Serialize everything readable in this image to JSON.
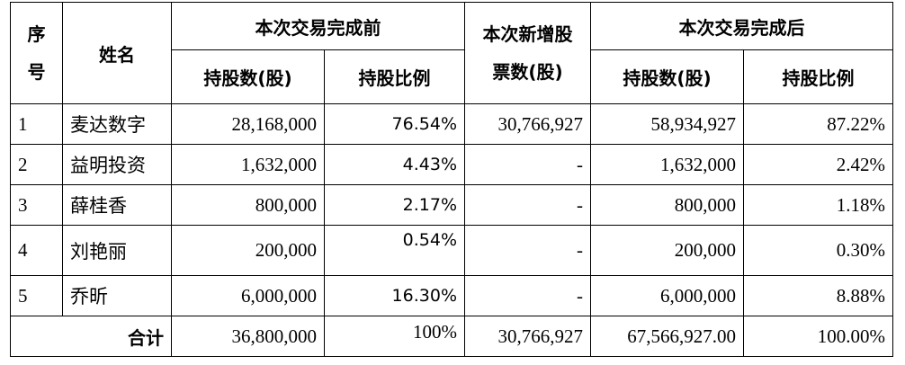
{
  "header": {
    "seq": "序号",
    "seq_line1": "序",
    "seq_line2": "号",
    "name": "姓名",
    "before_group": "本次交易完成前",
    "new_shares_line1": "本次新增股",
    "new_shares_line2": "票数(股)",
    "after_group": "本次交易完成后",
    "shares_before": "持股数(股)",
    "ratio_before": "持股比例",
    "shares_after": "持股数(股)",
    "ratio_after": "持股比例"
  },
  "rows": [
    {
      "no": "1",
      "name": "麦达数字",
      "shares_before": "28,168,000",
      "ratio_before": "76.54%",
      "new_shares": "30,766,927",
      "shares_after": "58,934,927",
      "ratio_after": "87.22%"
    },
    {
      "no": "2",
      "name": "益明投资",
      "shares_before": "1,632,000",
      "ratio_before": "4.43%",
      "new_shares": "-",
      "shares_after": "1,632,000",
      "ratio_after": "2.42%"
    },
    {
      "no": "3",
      "name": "薛桂香",
      "shares_before": "800,000",
      "ratio_before": "2.17%",
      "new_shares": "-",
      "shares_after": "800,000",
      "ratio_after": "1.18%"
    },
    {
      "no": "4",
      "name": "刘艳丽",
      "shares_before": "200,000",
      "ratio_before": "0.54%",
      "new_shares": "-",
      "shares_after": "200,000",
      "ratio_after": "0.30%"
    },
    {
      "no": "5",
      "name": "乔昕",
      "shares_before": "6,000,000",
      "ratio_before": "16.30%",
      "new_shares": "-",
      "shares_after": "6,000,000",
      "ratio_after": "8.88%"
    }
  ],
  "total": {
    "label": "合计",
    "shares_before": "36,800,000",
    "ratio_before": "100%",
    "new_shares": "30,766,927",
    "shares_after": "67,566,927.00",
    "ratio_after": "100.00%"
  }
}
